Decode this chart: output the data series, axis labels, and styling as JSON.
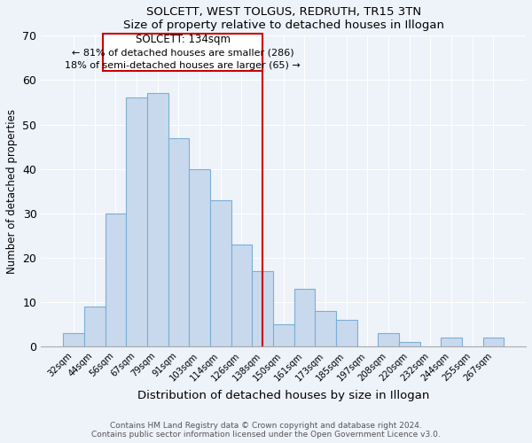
{
  "title": "SOLCETT, WEST TOLGUS, REDRUTH, TR15 3TN",
  "subtitle": "Size of property relative to detached houses in Illogan",
  "xlabel": "Distribution of detached houses by size in Illogan",
  "ylabel": "Number of detached properties",
  "bar_labels": [
    "32sqm",
    "44sqm",
    "56sqm",
    "67sqm",
    "79sqm",
    "91sqm",
    "103sqm",
    "114sqm",
    "126sqm",
    "138sqm",
    "150sqm",
    "161sqm",
    "173sqm",
    "185sqm",
    "197sqm",
    "208sqm",
    "220sqm",
    "232sqm",
    "244sqm",
    "255sqm",
    "267sqm"
  ],
  "bar_values": [
    3,
    9,
    30,
    56,
    57,
    47,
    40,
    33,
    23,
    17,
    5,
    13,
    8,
    6,
    0,
    3,
    1,
    0,
    2,
    0,
    2
  ],
  "bar_color": "#c8d9ee",
  "bar_edge_color": "#7bafd4",
  "marker_line_color": "#cc0000",
  "annotation_line1": "SOLCETT: 134sqm",
  "annotation_line2": "← 81% of detached houses are smaller (286)",
  "annotation_line3": "18% of semi-detached houses are larger (65) →",
  "ylim": [
    0,
    70
  ],
  "yticks": [
    0,
    10,
    20,
    30,
    40,
    50,
    60,
    70
  ],
  "footer1": "Contains HM Land Registry data © Crown copyright and database right 2024.",
  "footer2": "Contains public sector information licensed under the Open Government Licence v3.0.",
  "background_color": "#eef2f9"
}
